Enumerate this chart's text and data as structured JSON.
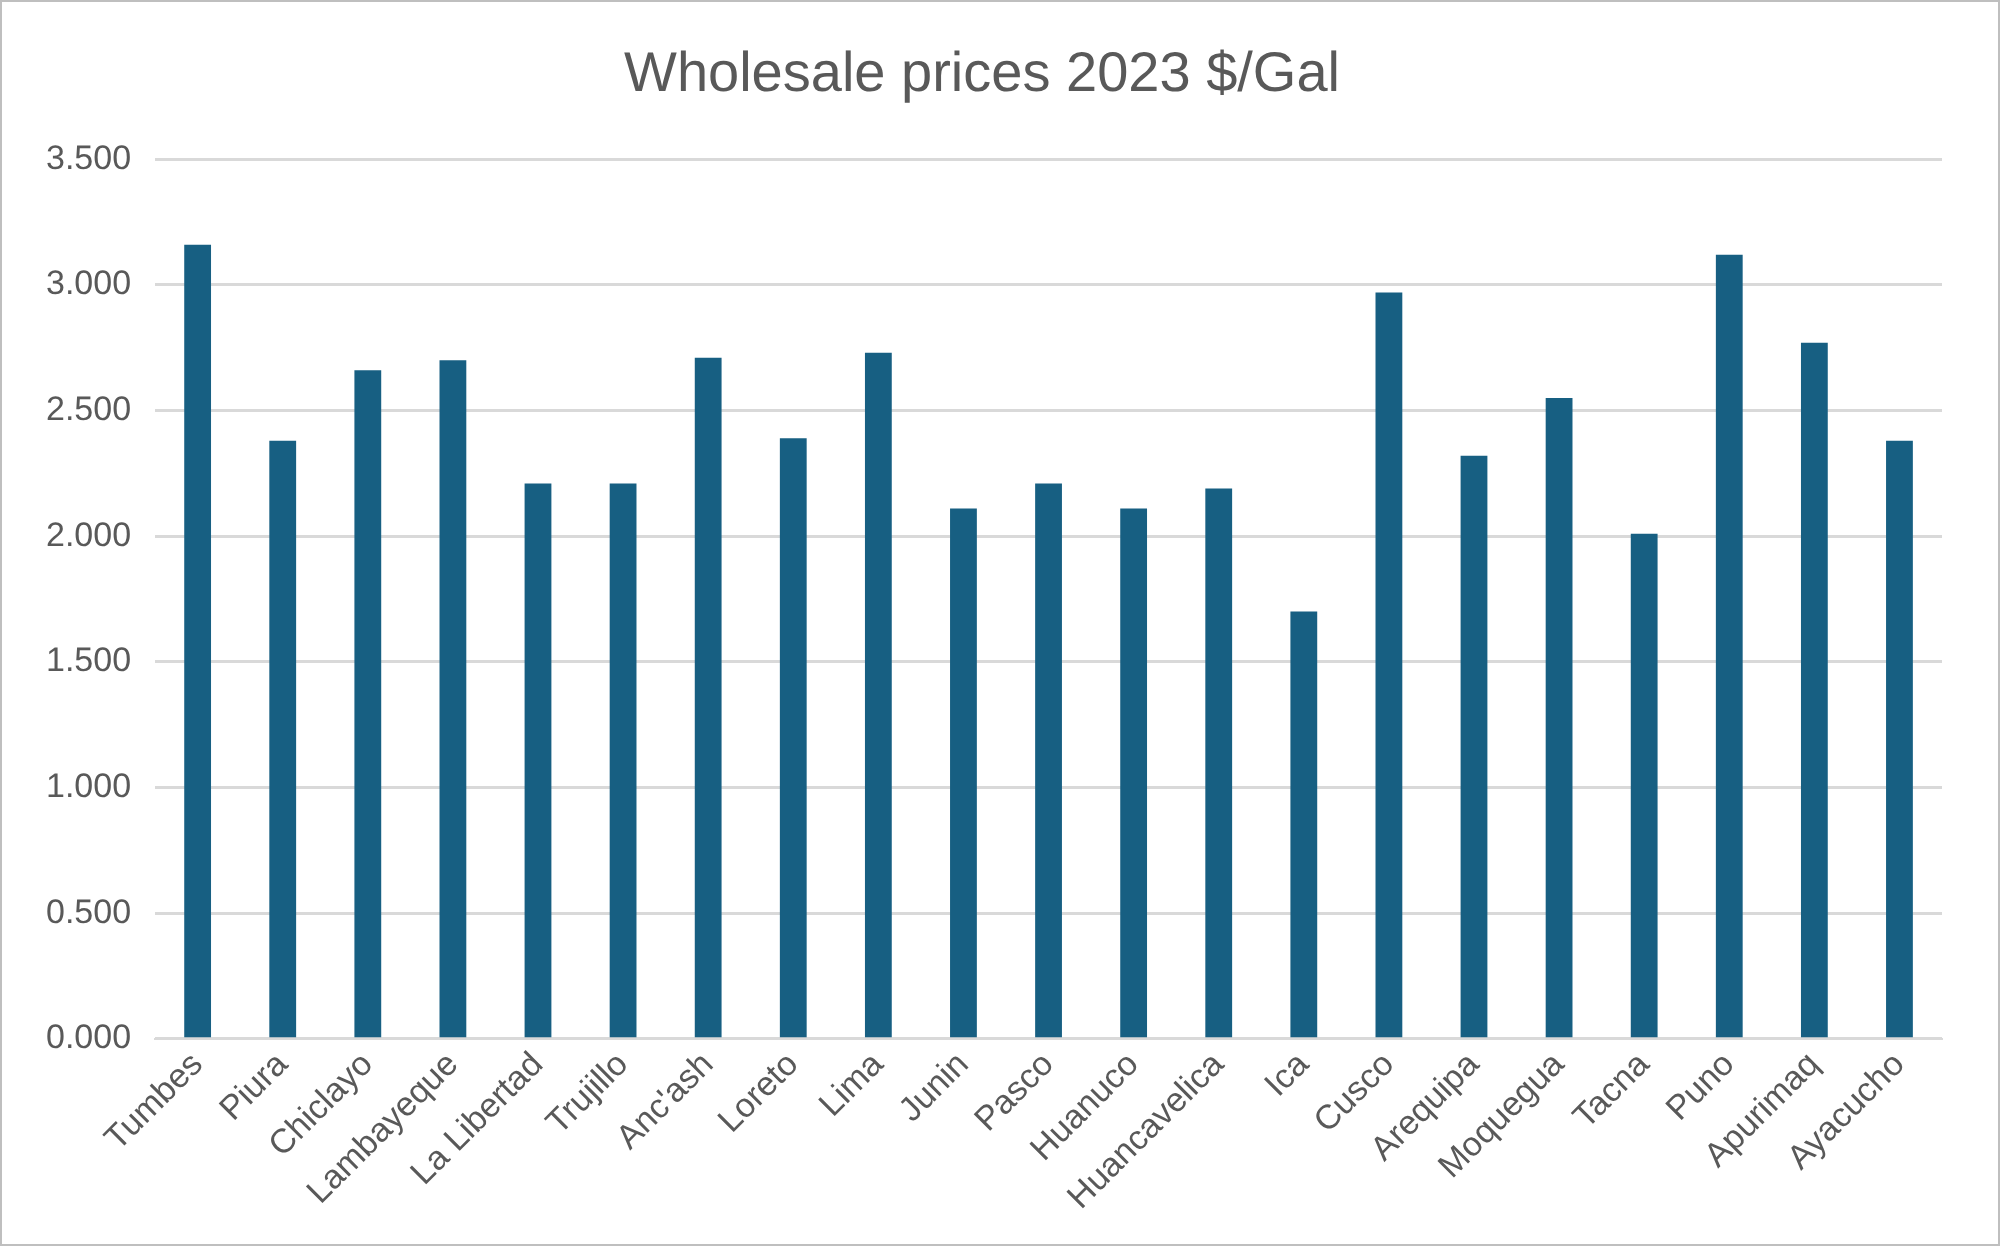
{
  "chart_data": {
    "type": "bar",
    "title": "Wholesale prices 2023 $/Gal",
    "categories": [
      "Tumbes",
      "Piura",
      "Chiclayo",
      "Lambayeque",
      "La Libertad",
      "Trujillo",
      "Anc'ash",
      "Loreto",
      "Lima",
      "Junin",
      "Pasco",
      "Huanuco",
      "Huancavelica",
      "Ica",
      "Cusco",
      "Arequipa",
      "Moquegua",
      "Tacna",
      "Puno",
      "Apurimaq",
      "Ayacucho"
    ],
    "values": [
      3.16,
      2.38,
      2.66,
      2.7,
      2.21,
      2.21,
      2.71,
      2.39,
      2.73,
      2.11,
      2.21,
      2.11,
      2.19,
      1.7,
      2.97,
      2.32,
      2.55,
      2.01,
      3.12,
      2.77,
      2.38
    ],
    "color": "#175f82",
    "ylim": [
      0,
      3.5
    ],
    "yticks": [
      {
        "value": 0,
        "label": "0.000"
      },
      {
        "value": 0.5,
        "label": "0.500"
      },
      {
        "value": 1,
        "label": "1.000"
      },
      {
        "value": 1.5,
        "label": "1.500"
      },
      {
        "value": 2,
        "label": "2.000"
      },
      {
        "value": 2.5,
        "label": "2.500"
      },
      {
        "value": 3,
        "label": "3.000"
      },
      {
        "value": 3.5,
        "label": "3.500"
      }
    ],
    "grid": "y"
  }
}
